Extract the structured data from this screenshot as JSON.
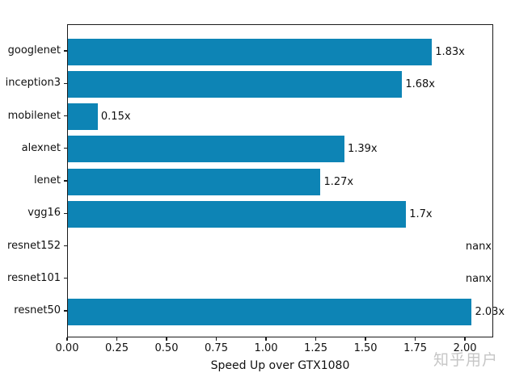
{
  "figure": {
    "background": "#ffffff",
    "watermark": "知乎用户"
  },
  "chart_data": {
    "type": "bar",
    "orientation": "horizontal",
    "title": "",
    "xlabel": "Speed Up over GTX1080",
    "ylabel": "",
    "categories": [
      "googlenet",
      "inception3",
      "mobilenet",
      "alexnet",
      "lenet",
      "vgg16",
      "resnet152",
      "resnet101",
      "resnet50"
    ],
    "values": [
      1.83,
      1.68,
      0.15,
      1.39,
      1.27,
      1.7,
      null,
      null,
      2.03
    ],
    "bar_labels": [
      "1.83x",
      "1.68x",
      "0.15x",
      "1.39x",
      "1.27x",
      "1.7x",
      "nanx",
      "nanx",
      "2.03x"
    ],
    "x_tick_labels": [
      "0.00",
      "0.25",
      "0.50",
      "0.75",
      "1.00",
      "1.25",
      "1.50",
      "1.75",
      "2.00"
    ],
    "x_tick_values": [
      0,
      0.25,
      0.5,
      0.75,
      1.0,
      1.25,
      1.5,
      1.75,
      2.0
    ],
    "xlim": [
      0,
      2.142
    ],
    "grid": false,
    "legend_position": "none",
    "bar_color": "#0d84b5",
    "axis_color": "#1a1a1a",
    "text_color": "#111111"
  }
}
